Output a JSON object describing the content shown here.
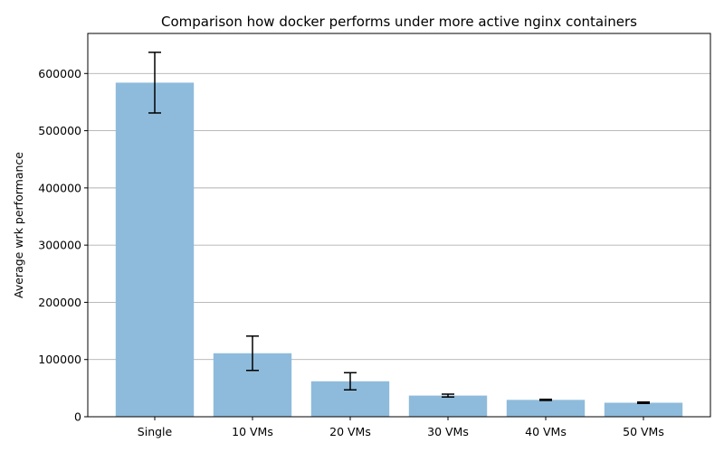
{
  "chart_data": {
    "type": "bar",
    "title": "Comparison how docker performs under more active nginx containers",
    "xlabel": "",
    "ylabel": "Average wrk performance",
    "categories": [
      "Single",
      "10 VMs",
      "20 VMs",
      "30 VMs",
      "40 VMs",
      "50 VMs"
    ],
    "values": [
      584000,
      111000,
      62000,
      37000,
      29500,
      24500
    ],
    "errors": [
      53000,
      30000,
      15000,
      2500,
      1000,
      1200
    ],
    "ylim": [
      0,
      670000
    ],
    "yticks": [
      0,
      100000,
      200000,
      300000,
      400000,
      500000,
      600000
    ],
    "ytick_labels": [
      "0",
      "100000",
      "200000",
      "300000",
      "400000",
      "500000",
      "600000"
    ],
    "grid": "y",
    "colors": {
      "bar": "#8ebbdb",
      "grid": "#b0b0b0",
      "errorbar": "#000000",
      "axis": "#000000"
    }
  }
}
